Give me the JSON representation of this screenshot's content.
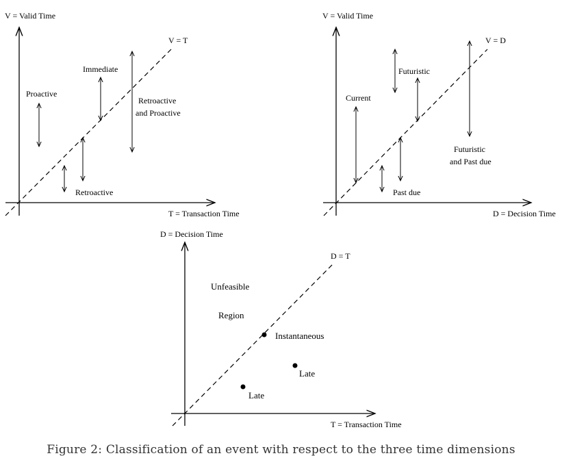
{
  "panel_valid_transaction": {
    "y_axis_label": "V = Valid Time",
    "x_axis_label": "T = Transaction Time",
    "diagonal_label": "V = T",
    "categories": {
      "proactive": "Proactive",
      "immediate": "Immediate",
      "retroactive_and_proactive_line1": "Retroactive",
      "retroactive_and_proactive_line2": "and Proactive",
      "retroactive": "Retroactive"
    }
  },
  "panel_valid_decision": {
    "y_axis_label": "V = Valid Time",
    "x_axis_label": "D = Decision Time",
    "diagonal_label": "V = D",
    "categories": {
      "current": "Current",
      "futuristic": "Futuristic",
      "futuristic_and_past_due_line1": "Futuristic",
      "futuristic_and_past_due_line2": "and Past due",
      "past_due": "Past due"
    }
  },
  "panel_decision_transaction": {
    "y_axis_label": "D = Decision Time",
    "x_axis_label": "T = Transaction Time",
    "diagonal_label": "D = T",
    "region_line1": "Unfeasible",
    "region_line2": "Region",
    "point_instantaneous": "Instantaneous",
    "point_late_upper": "Late",
    "point_late_lower": "Late"
  },
  "caption": "Figure 2: Classification of an event with respect to the three time dimensions"
}
